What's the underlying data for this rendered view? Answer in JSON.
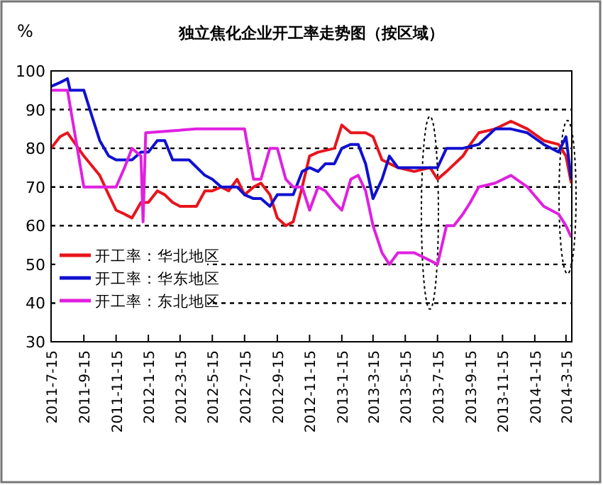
{
  "chart_data": {
    "type": "line",
    "title": "独立焦化企业开工率走势图（按区域）",
    "ylabel": "%",
    "xlim": [
      "2011-07-15",
      "2014-03-26"
    ],
    "xticks": [
      {
        "value": "2011-07-15",
        "label": "2011-7-15"
      },
      {
        "value": "2011-09-15",
        "label": "2011-9-15"
      },
      {
        "value": "2011-11-15",
        "label": "2011-11-15"
      },
      {
        "value": "2012-01-15",
        "label": "2012-1-15"
      },
      {
        "value": "2012-03-15",
        "label": "2012-3-15"
      },
      {
        "value": "2012-05-15",
        "label": "2012-5-15"
      },
      {
        "value": "2012-07-15",
        "label": "2012-7-15"
      },
      {
        "value": "2012-09-15",
        "label": "2012-9-15"
      },
      {
        "value": "2012-11-15",
        "label": "2012-11-15"
      },
      {
        "value": "2013-01-15",
        "label": "2013-1-15"
      },
      {
        "value": "2013-03-15",
        "label": "2013-3-15"
      },
      {
        "value": "2013-05-15",
        "label": "2013-5-15"
      },
      {
        "value": "2013-07-15",
        "label": "2013-7-15"
      },
      {
        "value": "2013-09-15",
        "label": "2013-9-15"
      },
      {
        "value": "2013-11-15",
        "label": "2013-11-15"
      },
      {
        "value": "2014-01-15",
        "label": "2014-1-15"
      },
      {
        "value": "2014-03-15",
        "label": "2014-3-15"
      }
    ],
    "ylim": [
      30,
      100
    ],
    "yticks": [
      30,
      40,
      50,
      60,
      70,
      80,
      90,
      100
    ],
    "grid": "y",
    "legend": "bottom left",
    "series": [
      {
        "name": "开工率：华北地区",
        "color": "#e8141c",
        "x": [
          "2011-07-15",
          "2011-08-01",
          "2011-08-15",
          "2011-09-15",
          "2011-10-15",
          "2011-11-01",
          "2011-11-15",
          "2011-12-01",
          "2011-12-15",
          "2012-01-01",
          "2012-01-15",
          "2012-02-01",
          "2012-02-15",
          "2012-03-01",
          "2012-03-15",
          "2012-04-15",
          "2012-05-01",
          "2012-05-15",
          "2012-06-01",
          "2012-06-15",
          "2012-07-01",
          "2012-07-15",
          "2012-08-01",
          "2012-08-15",
          "2012-09-01",
          "2012-09-15",
          "2012-10-01",
          "2012-10-15",
          "2012-11-01",
          "2012-11-15",
          "2012-12-01",
          "2013-01-01",
          "2013-01-15",
          "2013-02-01",
          "2013-03-01",
          "2013-03-15",
          "2013-04-01",
          "2013-05-01",
          "2013-06-01",
          "2013-07-01",
          "2013-07-15",
          "2013-08-01",
          "2013-09-01",
          "2013-09-15",
          "2013-10-01",
          "2013-11-01",
          "2013-12-01",
          "2014-01-01",
          "2014-02-01",
          "2014-03-01",
          "2014-03-15",
          "2014-03-25"
        ],
        "values": [
          80,
          83,
          84,
          78,
          73,
          68,
          64,
          63,
          62,
          66,
          66,
          69,
          68,
          66,
          65,
          65,
          69,
          69,
          70,
          69,
          72,
          68,
          70,
          71,
          68,
          62,
          60,
          61,
          70,
          78,
          79,
          80,
          86,
          84,
          84,
          83,
          77,
          75,
          74,
          75,
          72,
          74,
          78,
          81,
          84,
          85,
          87,
          85,
          82,
          81,
          78,
          71
        ]
      },
      {
        "name": "开工率：华东地区",
        "color": "#1010d0",
        "x": [
          "2011-07-15",
          "2011-08-01",
          "2011-08-15",
          "2011-08-20",
          "2011-09-15",
          "2011-10-01",
          "2011-10-15",
          "2011-11-01",
          "2011-11-15",
          "2011-12-15",
          "2012-01-01",
          "2012-01-15",
          "2012-02-01",
          "2012-02-15",
          "2012-03-01",
          "2012-04-01",
          "2012-05-01",
          "2012-05-15",
          "2012-06-01",
          "2012-07-01",
          "2012-07-15",
          "2012-08-01",
          "2012-08-15",
          "2012-09-01",
          "2012-09-15",
          "2012-10-15",
          "2012-11-01",
          "2012-11-15",
          "2012-12-01",
          "2012-12-15",
          "2013-01-01",
          "2013-01-15",
          "2013-02-01",
          "2013-02-15",
          "2013-03-01",
          "2013-03-15",
          "2013-04-01",
          "2013-04-15",
          "2013-05-01",
          "2013-06-01",
          "2013-07-15",
          "2013-08-01",
          "2013-09-01",
          "2013-10-01",
          "2013-11-01",
          "2013-12-01",
          "2014-01-01",
          "2014-02-01",
          "2014-03-01",
          "2014-03-15",
          "2014-03-25"
        ],
        "values": [
          96,
          97,
          98,
          95,
          95,
          88,
          82,
          78,
          77,
          77,
          79,
          79,
          82,
          82,
          77,
          77,
          73,
          72,
          70,
          70,
          68,
          67,
          67,
          65,
          68,
          68,
          74,
          75,
          74,
          76,
          76,
          80,
          81,
          81,
          76,
          67,
          72,
          78,
          75,
          75,
          75,
          80,
          80,
          81,
          85,
          85,
          84,
          81,
          79,
          83,
          72
        ]
      },
      {
        "name": "开工率：东北地区",
        "color": "#e020e0",
        "x": [
          "2011-07-15",
          "2011-08-15",
          "2011-09-15",
          "2011-11-15",
          "2011-12-01",
          "2011-12-15",
          "2012-01-01",
          "2012-01-05",
          "2012-01-10",
          "2012-04-15",
          "2012-07-15",
          "2012-08-01",
          "2012-08-15",
          "2012-09-01",
          "2012-09-15",
          "2012-10-01",
          "2012-10-15",
          "2012-11-01",
          "2012-11-15",
          "2012-12-01",
          "2012-12-15",
          "2013-01-01",
          "2013-01-15",
          "2013-02-01",
          "2013-02-15",
          "2013-03-01",
          "2013-03-15",
          "2013-04-01",
          "2013-04-15",
          "2013-05-01",
          "2013-06-01",
          "2013-07-01",
          "2013-07-15",
          "2013-08-01",
          "2013-08-15",
          "2013-09-01",
          "2013-09-15",
          "2013-10-01",
          "2013-11-01",
          "2013-12-01",
          "2014-01-01",
          "2014-02-01",
          "2014-03-01",
          "2014-03-15",
          "2014-03-25"
        ],
        "values": [
          95,
          95,
          70,
          70,
          75,
          80,
          78,
          61,
          84,
          85,
          85,
          72,
          72,
          80,
          80,
          72,
          70,
          70,
          64,
          70,
          69,
          66,
          64,
          72,
          73,
          69,
          60,
          53,
          50,
          53,
          53,
          51,
          50,
          60,
          60,
          63,
          66,
          70,
          71,
          73,
          70,
          65,
          63,
          60,
          57
        ]
      }
    ]
  }
}
